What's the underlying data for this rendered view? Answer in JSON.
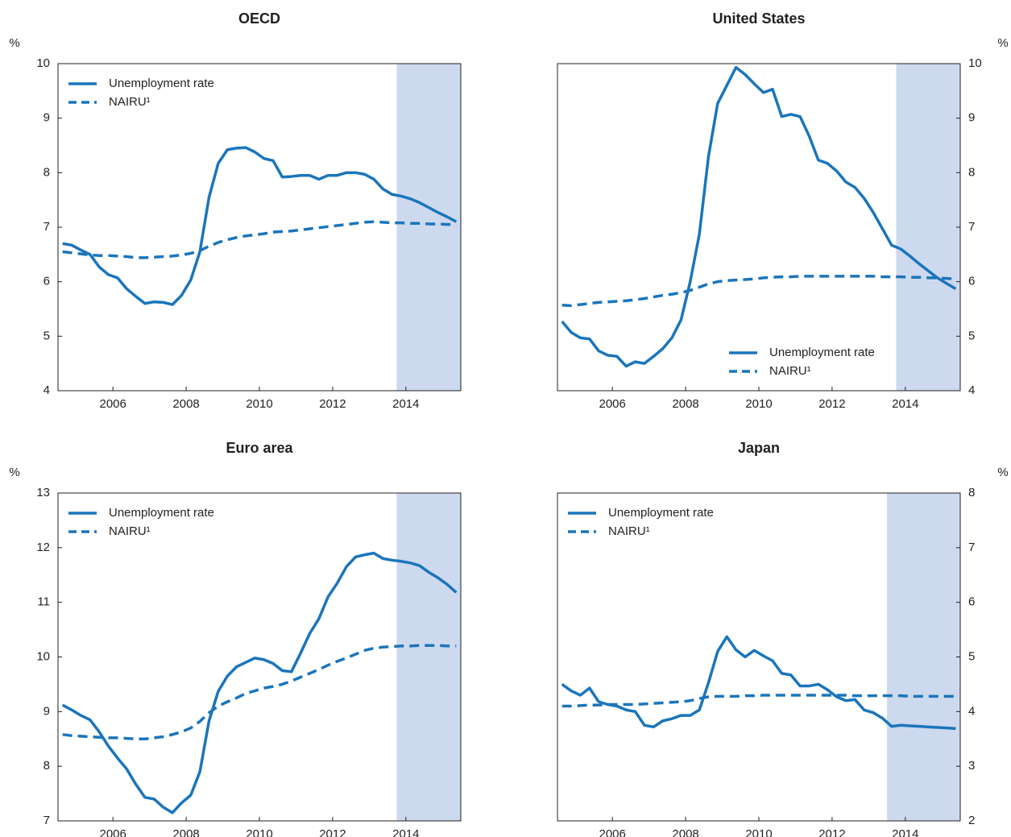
{
  "chart_data": [
    {
      "type": "line",
      "title": "OECD",
      "ylabel": "%",
      "y_axis_side": "left",
      "legend": "upper left",
      "xlim": [
        2005,
        2016
      ],
      "ylim": [
        4,
        10
      ],
      "yticks": [
        4,
        5,
        6,
        7,
        8,
        9,
        10
      ],
      "xticks": [
        {
          "value": 2006.5,
          "label": "2006"
        },
        {
          "value": 2008.5,
          "label": "2008"
        },
        {
          "value": 2010.5,
          "label": "2010"
        },
        {
          "value": 2012.5,
          "label": "2012"
        },
        {
          "value": 2014.5,
          "label": "2014"
        }
      ],
      "shade": [
        2014.25,
        2016
      ],
      "shade_color": "#cdd9ef",
      "x": [
        2005.125,
        2005.375,
        2005.625,
        2005.875,
        2006.125,
        2006.375,
        2006.625,
        2006.875,
        2007.125,
        2007.375,
        2007.625,
        2007.875,
        2008.125,
        2008.375,
        2008.625,
        2008.875,
        2009.125,
        2009.375,
        2009.625,
        2009.875,
        2010.125,
        2010.375,
        2010.625,
        2010.875,
        2011.125,
        2011.375,
        2011.625,
        2011.875,
        2012.125,
        2012.375,
        2012.625,
        2012.875,
        2013.125,
        2013.375,
        2013.625,
        2013.875,
        2014.125,
        2014.375,
        2014.625,
        2014.875,
        2015.125,
        2015.375,
        2015.625,
        2015.875
      ],
      "series": [
        {
          "name": "Unemployment rate",
          "color": "#1a75bb",
          "dash": false,
          "values": [
            6.7,
            6.67,
            6.58,
            6.5,
            6.27,
            6.13,
            6.07,
            5.87,
            5.73,
            5.6,
            5.63,
            5.62,
            5.58,
            5.75,
            6.03,
            6.55,
            7.55,
            8.17,
            8.42,
            8.45,
            8.46,
            8.38,
            8.26,
            8.22,
            7.92,
            7.93,
            7.95,
            7.95,
            7.88,
            7.95,
            7.95,
            8.0,
            8.0,
            7.97,
            7.88,
            7.7,
            7.6,
            7.57,
            7.52,
            7.45,
            7.36,
            7.27,
            7.19,
            7.1
          ]
        },
        {
          "name": "NAIRU¹",
          "color": "#1a75bb",
          "dash": true,
          "values": [
            6.55,
            6.53,
            6.51,
            6.49,
            6.48,
            6.48,
            6.47,
            6.46,
            6.44,
            6.44,
            6.45,
            6.46,
            6.47,
            6.49,
            6.52,
            6.57,
            6.65,
            6.72,
            6.77,
            6.81,
            6.84,
            6.86,
            6.88,
            6.91,
            6.92,
            6.93,
            6.95,
            6.97,
            6.99,
            7.01,
            7.03,
            7.05,
            7.07,
            7.09,
            7.1,
            7.09,
            7.08,
            7.08,
            7.07,
            7.07,
            7.06,
            7.06,
            7.05,
            7.05
          ]
        }
      ]
    },
    {
      "type": "line",
      "title": "United States",
      "ylabel": "%",
      "y_axis_side": "right",
      "legend": "lower right",
      "xlim": [
        2005,
        2016
      ],
      "ylim": [
        4,
        10
      ],
      "yticks": [
        4,
        5,
        6,
        7,
        8,
        9,
        10
      ],
      "xticks": [
        {
          "value": 2006.5,
          "label": "2006"
        },
        {
          "value": 2008.5,
          "label": "2008"
        },
        {
          "value": 2010.5,
          "label": "2010"
        },
        {
          "value": 2012.5,
          "label": "2012"
        },
        {
          "value": 2014.5,
          "label": "2014"
        }
      ],
      "shade": [
        2014.25,
        2016
      ],
      "shade_color": "#cdd9ef",
      "x": [
        2005.125,
        2005.375,
        2005.625,
        2005.875,
        2006.125,
        2006.375,
        2006.625,
        2006.875,
        2007.125,
        2007.375,
        2007.625,
        2007.875,
        2008.125,
        2008.375,
        2008.625,
        2008.875,
        2009.125,
        2009.375,
        2009.625,
        2009.875,
        2010.125,
        2010.375,
        2010.625,
        2010.875,
        2011.125,
        2011.375,
        2011.625,
        2011.875,
        2012.125,
        2012.375,
        2012.625,
        2012.875,
        2013.125,
        2013.375,
        2013.625,
        2013.875,
        2014.125,
        2014.375,
        2014.625,
        2014.875,
        2015.125,
        2015.375,
        2015.625,
        2015.875
      ],
      "series": [
        {
          "name": "Unemployment rate",
          "color": "#1a75bb",
          "dash": false,
          "values": [
            5.27,
            5.07,
            4.97,
            4.95,
            4.73,
            4.65,
            4.63,
            4.45,
            4.53,
            4.5,
            4.63,
            4.77,
            4.97,
            5.3,
            6.0,
            6.87,
            8.3,
            9.27,
            9.6,
            9.93,
            9.8,
            9.63,
            9.47,
            9.53,
            9.03,
            9.07,
            9.03,
            8.67,
            8.23,
            8.17,
            8.03,
            7.83,
            7.73,
            7.53,
            7.27,
            6.97,
            6.67,
            6.6,
            6.47,
            6.33,
            6.2,
            6.07,
            5.97,
            5.87
          ]
        },
        {
          "name": "NAIRU¹",
          "color": "#1a75bb",
          "dash": true,
          "values": [
            5.57,
            5.56,
            5.58,
            5.6,
            5.62,
            5.63,
            5.64,
            5.65,
            5.67,
            5.69,
            5.72,
            5.75,
            5.77,
            5.8,
            5.84,
            5.9,
            5.96,
            6.0,
            6.02,
            6.03,
            6.04,
            6.05,
            6.07,
            6.08,
            6.09,
            6.09,
            6.1,
            6.1,
            6.1,
            6.1,
            6.1,
            6.1,
            6.1,
            6.1,
            6.1,
            6.09,
            6.09,
            6.09,
            6.08,
            6.08,
            6.07,
            6.07,
            6.06,
            6.05
          ]
        }
      ]
    },
    {
      "type": "line",
      "title": "Euro area",
      "ylabel": "%",
      "y_axis_side": "left",
      "legend": "upper left",
      "xlim": [
        2005,
        2016
      ],
      "ylim": [
        7,
        13
      ],
      "yticks": [
        7,
        8,
        9,
        10,
        11,
        12,
        13
      ],
      "xticks": [
        {
          "value": 2006.5,
          "label": "2006"
        },
        {
          "value": 2008.5,
          "label": "2008"
        },
        {
          "value": 2010.5,
          "label": "2010"
        },
        {
          "value": 2012.5,
          "label": "2012"
        },
        {
          "value": 2014.5,
          "label": "2014"
        }
      ],
      "shade": [
        2014.25,
        2016
      ],
      "shade_color": "#cdd9ef",
      "x": [
        2005.125,
        2005.375,
        2005.625,
        2005.875,
        2006.125,
        2006.375,
        2006.625,
        2006.875,
        2007.125,
        2007.375,
        2007.625,
        2007.875,
        2008.125,
        2008.375,
        2008.625,
        2008.875,
        2009.125,
        2009.375,
        2009.625,
        2009.875,
        2010.125,
        2010.375,
        2010.625,
        2010.875,
        2011.125,
        2011.375,
        2011.625,
        2011.875,
        2012.125,
        2012.375,
        2012.625,
        2012.875,
        2013.125,
        2013.375,
        2013.625,
        2013.875,
        2014.125,
        2014.375,
        2014.625,
        2014.875,
        2015.125,
        2015.375,
        2015.625,
        2015.875
      ],
      "series": [
        {
          "name": "Unemployment rate",
          "color": "#1a75bb",
          "dash": false,
          "values": [
            9.12,
            9.03,
            8.93,
            8.85,
            8.63,
            8.37,
            8.15,
            7.95,
            7.67,
            7.43,
            7.4,
            7.25,
            7.15,
            7.33,
            7.47,
            7.9,
            8.83,
            9.37,
            9.65,
            9.82,
            9.9,
            9.98,
            9.95,
            9.88,
            9.75,
            9.73,
            10.07,
            10.43,
            10.7,
            11.1,
            11.35,
            11.65,
            11.83,
            11.87,
            11.9,
            11.8,
            11.77,
            11.75,
            11.72,
            11.67,
            11.55,
            11.45,
            11.33,
            11.18
          ]
        },
        {
          "name": "NAIRU¹",
          "color": "#1a75bb",
          "dash": true,
          "values": [
            8.58,
            8.56,
            8.55,
            8.54,
            8.53,
            8.52,
            8.52,
            8.51,
            8.5,
            8.5,
            8.52,
            8.54,
            8.58,
            8.63,
            8.7,
            8.82,
            8.98,
            9.1,
            9.18,
            9.25,
            9.33,
            9.38,
            9.43,
            9.46,
            9.5,
            9.56,
            9.63,
            9.7,
            9.77,
            9.85,
            9.92,
            9.98,
            10.05,
            10.12,
            10.16,
            10.18,
            10.19,
            10.2,
            10.2,
            10.21,
            10.21,
            10.21,
            10.2,
            10.2
          ]
        }
      ]
    },
    {
      "type": "line",
      "title": "Japan",
      "ylabel": "%",
      "y_axis_side": "right",
      "legend": "upper left",
      "xlim": [
        2005,
        2016
      ],
      "ylim": [
        2,
        8
      ],
      "yticks": [
        2,
        3,
        4,
        5,
        6,
        7,
        8
      ],
      "xticks": [
        {
          "value": 2006.5,
          "label": "2006"
        },
        {
          "value": 2008.5,
          "label": "2008"
        },
        {
          "value": 2010.5,
          "label": "2010"
        },
        {
          "value": 2012.5,
          "label": "2012"
        },
        {
          "value": 2014.5,
          "label": "2014"
        }
      ],
      "shade": [
        2014,
        2016
      ],
      "shade_color": "#cdd9ef",
      "x": [
        2005.125,
        2005.375,
        2005.625,
        2005.875,
        2006.125,
        2006.375,
        2006.625,
        2006.875,
        2007.125,
        2007.375,
        2007.625,
        2007.875,
        2008.125,
        2008.375,
        2008.625,
        2008.875,
        2009.125,
        2009.375,
        2009.625,
        2009.875,
        2010.125,
        2010.375,
        2010.625,
        2010.875,
        2011.125,
        2011.375,
        2011.625,
        2011.875,
        2012.125,
        2012.375,
        2012.625,
        2012.875,
        2013.125,
        2013.375,
        2013.625,
        2013.875,
        2014.125,
        2014.375,
        2014.625,
        2014.875,
        2015.125,
        2015.375,
        2015.625,
        2015.875
      ],
      "series": [
        {
          "name": "Unemployment rate",
          "color": "#1a75bb",
          "dash": false,
          "values": [
            4.5,
            4.38,
            4.3,
            4.43,
            4.18,
            4.13,
            4.1,
            4.03,
            4.0,
            3.75,
            3.72,
            3.83,
            3.87,
            3.93,
            3.93,
            4.03,
            4.53,
            5.1,
            5.37,
            5.13,
            5.0,
            5.12,
            5.02,
            4.93,
            4.7,
            4.67,
            4.47,
            4.47,
            4.5,
            4.4,
            4.27,
            4.2,
            4.22,
            4.03,
            3.98,
            3.88,
            3.73,
            3.75,
            3.74,
            3.73,
            3.72,
            3.71,
            3.7,
            3.69
          ]
        },
        {
          "name": "NAIRU¹",
          "color": "#1a75bb",
          "dash": true,
          "values": [
            4.1,
            4.1,
            4.11,
            4.12,
            4.12,
            4.13,
            4.13,
            4.13,
            4.13,
            4.14,
            4.15,
            4.16,
            4.17,
            4.18,
            4.2,
            4.24,
            4.27,
            4.28,
            4.28,
            4.28,
            4.29,
            4.29,
            4.3,
            4.3,
            4.3,
            4.3,
            4.3,
            4.3,
            4.3,
            4.3,
            4.3,
            4.3,
            4.29,
            4.29,
            4.29,
            4.29,
            4.29,
            4.29,
            4.28,
            4.28,
            4.28,
            4.28,
            4.28,
            4.28
          ]
        }
      ]
    }
  ]
}
